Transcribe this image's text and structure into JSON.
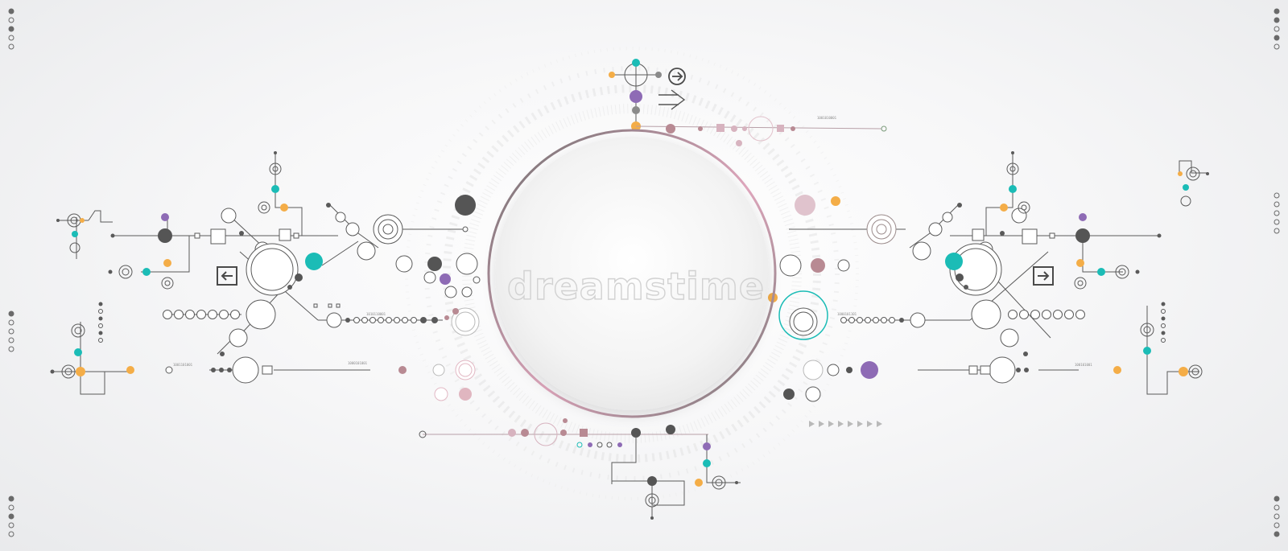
{
  "watermark": "dreamstime",
  "binary_labels": [
    "1000101001",
    "1001101001",
    "1010110001",
    "1000101101",
    "100101001",
    "1001010001"
  ],
  "colors": {
    "line": "#5a5a5a",
    "teal": "#1bbcb6",
    "orange": "#f4ad47",
    "purple": "#8e6bb5",
    "dark": "#555555",
    "mauve": "#b88a93",
    "pink_ring": "#e8c7d0"
  },
  "icons": [
    "arrow-left-box-icon",
    "arrow-right-box-icon",
    "arrow-right-circle-icon",
    "double-arrow-right-icon"
  ]
}
